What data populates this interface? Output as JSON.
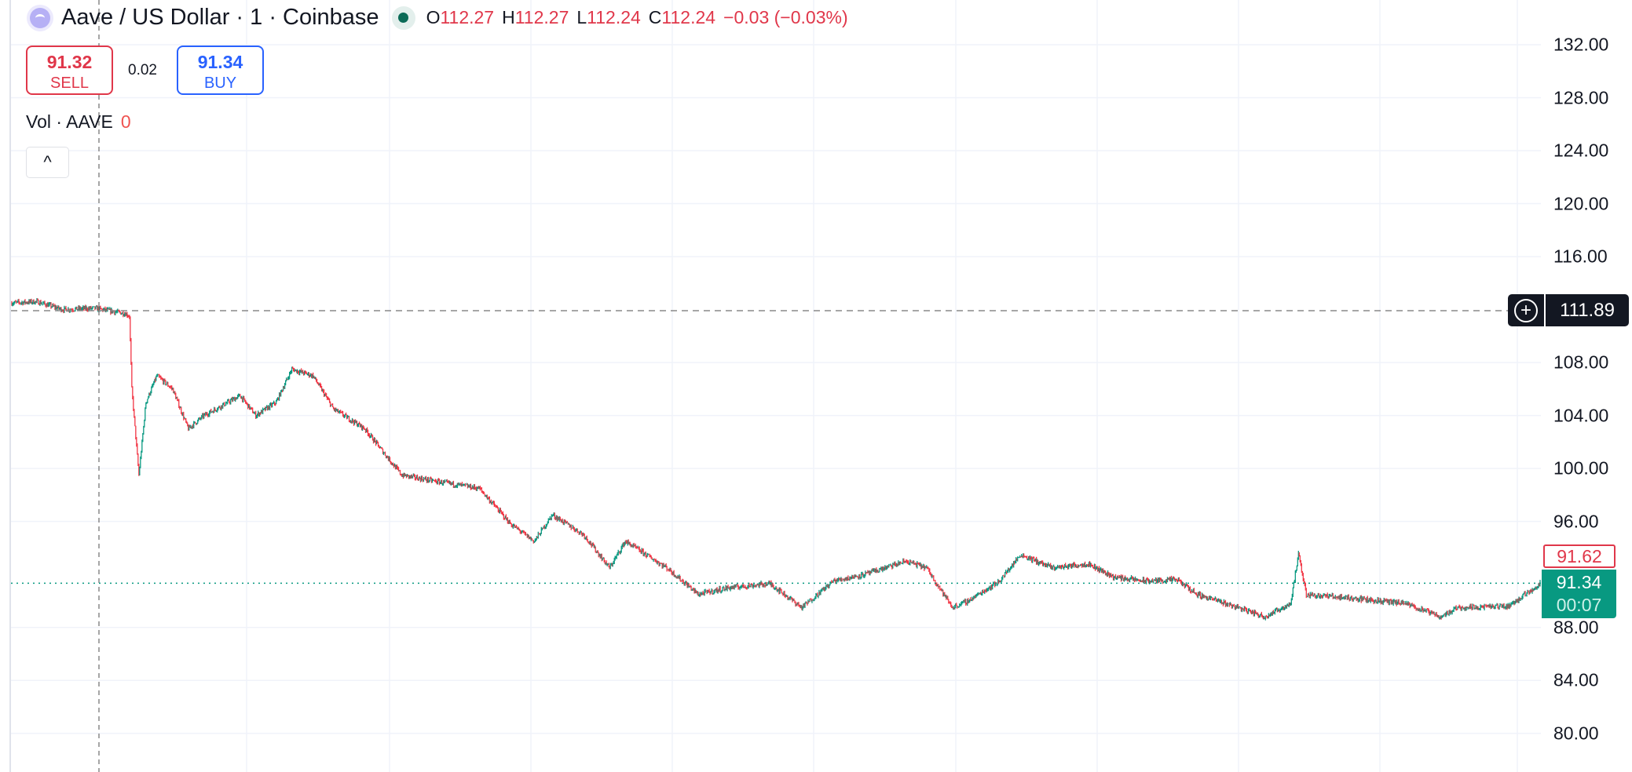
{
  "header": {
    "symbol_title": "Aave / US Dollar · 1 · Coinbase",
    "ohlc": [
      {
        "key": "O",
        "value": "112.27"
      },
      {
        "key": "H",
        "value": "112.27"
      },
      {
        "key": "L",
        "value": "112.24"
      },
      {
        "key": "C",
        "value": "112.24"
      }
    ],
    "change": "−0.03 (−0.03%)",
    "market_status": "open"
  },
  "trade": {
    "sell_price": "91.32",
    "sell_label": "SELL",
    "spread": "0.02",
    "buy_price": "91.34",
    "buy_label": "BUY"
  },
  "volume": {
    "label": "Vol · AAVE",
    "value": "0"
  },
  "collapse_icon": "chevron-up-icon",
  "colors": {
    "up": "#089981",
    "down": "#f23645",
    "sell": "#e0374a",
    "buy": "#2962ff",
    "last": "#089981"
  },
  "chart_data": {
    "type": "candlestick",
    "title": "",
    "xlabel": "",
    "ylabel": "",
    "x_units": "bar index (1-minute bars)",
    "ylim": [
      78,
      134
    ],
    "yticks": [
      "132.00",
      "128.00",
      "124.00",
      "120.00",
      "116.00",
      "108.00",
      "104.00",
      "100.00",
      "96.00",
      "88.00",
      "84.00",
      "80.00"
    ],
    "grid": true,
    "close_path": [
      [
        0,
        112.5
      ],
      [
        33,
        112.6
      ],
      [
        66,
        112.0
      ],
      [
        106,
        112.1
      ],
      [
        146,
        111.7
      ],
      [
        151,
        111.5
      ],
      [
        154,
        106
      ],
      [
        163,
        99.5
      ],
      [
        172,
        105
      ],
      [
        186,
        107
      ],
      [
        206,
        106
      ],
      [
        226,
        103
      ],
      [
        246,
        104
      ],
      [
        292,
        105.5
      ],
      [
        312,
        104
      ],
      [
        338,
        105
      ],
      [
        358,
        107.5
      ],
      [
        385,
        107
      ],
      [
        411,
        104.5
      ],
      [
        451,
        103
      ],
      [
        498,
        99.5
      ],
      [
        544,
        99
      ],
      [
        597,
        98.5
      ],
      [
        637,
        95.8
      ],
      [
        667,
        94.5
      ],
      [
        690,
        96.5
      ],
      [
        730,
        95
      ],
      [
        763,
        92.5
      ],
      [
        783,
        94.5
      ],
      [
        836,
        92.5
      ],
      [
        876,
        90.5
      ],
      [
        915,
        91
      ],
      [
        968,
        91.3
      ],
      [
        1008,
        89.5
      ],
      [
        1048,
        91.5
      ],
      [
        1088,
        92
      ],
      [
        1141,
        93
      ],
      [
        1167,
        92.5
      ],
      [
        1200,
        89.5
      ],
      [
        1220,
        90
      ],
      [
        1260,
        91.5
      ],
      [
        1287,
        93.5
      ],
      [
        1327,
        92.5
      ],
      [
        1373,
        92.8
      ],
      [
        1406,
        91.8
      ],
      [
        1446,
        91.5
      ],
      [
        1486,
        91.6
      ],
      [
        1512,
        90.5
      ],
      [
        1565,
        89.5
      ],
      [
        1598,
        88.8
      ],
      [
        1631,
        89.8
      ],
      [
        1641,
        93.5
      ],
      [
        1651,
        90.5
      ],
      [
        1711,
        90.2
      ],
      [
        1777,
        89.8
      ],
      [
        1823,
        88.8
      ],
      [
        1843,
        89.5
      ],
      [
        1909,
        89.6
      ],
      [
        1949,
        91.3
      ]
    ],
    "crosshair": {
      "price": "111.89"
    },
    "session_high": "91.62",
    "last_price": "91.34",
    "countdown": "00:07"
  }
}
